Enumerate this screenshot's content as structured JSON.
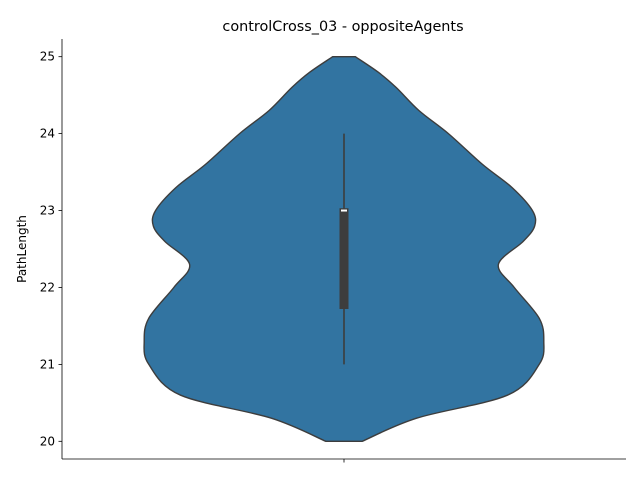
{
  "chart_data": {
    "type": "violin",
    "title": "controlCross_03 - oppositeAgents",
    "xlabel": "",
    "ylabel": "PathLength",
    "categories": [
      ""
    ],
    "ylim": [
      19.77,
      25.23
    ],
    "yticks": [
      20,
      21,
      22,
      23,
      24,
      25
    ],
    "violin_profile": {
      "y": [
        20.0,
        20.3,
        20.6,
        21.0,
        21.3,
        21.6,
        22.0,
        22.3,
        22.6,
        22.8,
        23.0,
        23.3,
        23.6,
        24.0,
        24.3,
        24.6,
        24.8,
        25.0
      ],
      "density": [
        0.08,
        0.32,
        0.72,
        0.86,
        0.88,
        0.86,
        0.75,
        0.68,
        0.79,
        0.84,
        0.83,
        0.74,
        0.61,
        0.46,
        0.33,
        0.23,
        0.15,
        0.05
      ]
    },
    "box": {
      "whisker_low": 21.0,
      "q1": 21.72,
      "median": 23.0,
      "q3": 23.03,
      "whisker_high": 24.0
    },
    "grid": false,
    "legend": "none",
    "colors": {
      "body": "#3274a1",
      "outline": "#3d3d3d",
      "box": "#3d3d3d",
      "median": "#ffffff"
    }
  }
}
